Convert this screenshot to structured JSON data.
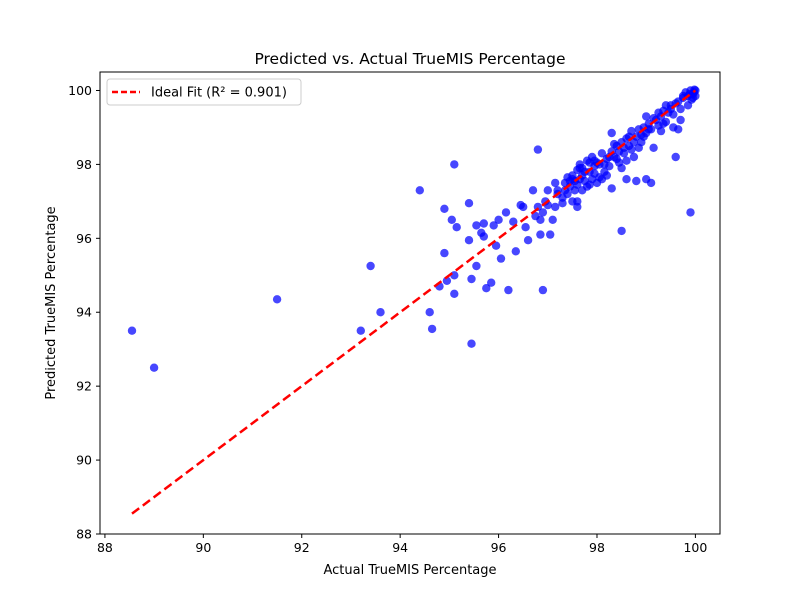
{
  "chart_data": {
    "type": "scatter",
    "title": "Predicted vs. Actual TrueMIS Percentage",
    "xlabel": "Actual TrueMIS Percentage",
    "ylabel": "Predicted TrueMIS Percentage",
    "xlim": [
      87.9,
      100.5
    ],
    "ylim": [
      88,
      100.5
    ],
    "xticks": [
      88,
      90,
      92,
      94,
      96,
      98,
      100
    ],
    "yticks": [
      88,
      90,
      92,
      94,
      96,
      98,
      100
    ],
    "xtick_labels": [
      "88",
      "90",
      "92",
      "94",
      "96",
      "98",
      "100"
    ],
    "ytick_labels": [
      "88",
      "90",
      "92",
      "94",
      "96",
      "98",
      "100"
    ],
    "grid": false,
    "legend_position": "top-left",
    "legend_label": "Ideal Fit (R² = 0.901)",
    "marker_color": "#0000ff",
    "line_color": "#ff0000",
    "ideal_line": {
      "x": [
        88.55,
        100.0
      ],
      "y": [
        88.55,
        100.0
      ]
    },
    "series": [
      {
        "points": [
          [
            88.55,
            93.5
          ],
          [
            89.0,
            92.5
          ],
          [
            91.5,
            94.35
          ],
          [
            93.2,
            93.5
          ],
          [
            93.4,
            95.25
          ],
          [
            93.6,
            94.0
          ],
          [
            94.4,
            97.3
          ],
          [
            94.6,
            94.0
          ],
          [
            94.65,
            93.55
          ],
          [
            94.8,
            94.7
          ],
          [
            94.95,
            94.85
          ],
          [
            94.9,
            96.8
          ],
          [
            94.9,
            95.6
          ],
          [
            95.05,
            96.5
          ],
          [
            95.1,
            94.5
          ],
          [
            95.1,
            95.0
          ],
          [
            95.1,
            98.0
          ],
          [
            95.15,
            96.3
          ],
          [
            95.4,
            95.95
          ],
          [
            95.4,
            96.95
          ],
          [
            95.45,
            93.15
          ],
          [
            95.45,
            94.9
          ],
          [
            95.55,
            96.35
          ],
          [
            95.55,
            95.25
          ],
          [
            95.65,
            96.15
          ],
          [
            95.7,
            96.4
          ],
          [
            95.7,
            96.05
          ],
          [
            95.75,
            94.65
          ],
          [
            95.85,
            94.8
          ],
          [
            95.9,
            96.35
          ],
          [
            95.95,
            95.8
          ],
          [
            96.0,
            96.5
          ],
          [
            96.05,
            95.45
          ],
          [
            96.15,
            96.7
          ],
          [
            96.2,
            94.6
          ],
          [
            96.3,
            96.45
          ],
          [
            96.35,
            95.65
          ],
          [
            96.45,
            96.9
          ],
          [
            96.55,
            96.3
          ],
          [
            96.6,
            95.95
          ],
          [
            96.7,
            97.3
          ],
          [
            96.8,
            96.85
          ],
          [
            96.85,
            96.5
          ],
          [
            96.85,
            96.1
          ],
          [
            96.9,
            94.6
          ],
          [
            96.9,
            96.7
          ],
          [
            96.95,
            97.0
          ],
          [
            97.0,
            96.9
          ],
          [
            97.05,
            96.1
          ],
          [
            97.1,
            96.5
          ],
          [
            97.15,
            97.5
          ],
          [
            96.8,
            98.4
          ],
          [
            97.2,
            97.2
          ],
          [
            97.3,
            97.1
          ],
          [
            97.35,
            97.5
          ],
          [
            97.4,
            97.65
          ],
          [
            97.45,
            97.4
          ],
          [
            97.5,
            97.7
          ],
          [
            97.55,
            97.3
          ],
          [
            97.6,
            97.85
          ],
          [
            97.65,
            98.0
          ],
          [
            97.65,
            97.9
          ],
          [
            97.6,
            96.85
          ],
          [
            97.6,
            97.0
          ],
          [
            97.7,
            97.7
          ],
          [
            97.75,
            97.55
          ],
          [
            97.8,
            98.1
          ],
          [
            97.85,
            97.45
          ],
          [
            97.85,
            97.8
          ],
          [
            97.9,
            98.2
          ],
          [
            97.95,
            97.95
          ],
          [
            97.95,
            97.75
          ],
          [
            98.0,
            98.05
          ],
          [
            98.05,
            98.0
          ],
          [
            98.05,
            97.65
          ],
          [
            98.1,
            98.3
          ],
          [
            98.15,
            97.8
          ],
          [
            98.2,
            98.15
          ],
          [
            98.25,
            97.95
          ],
          [
            98.3,
            98.35
          ],
          [
            98.3,
            98.85
          ],
          [
            98.3,
            97.35
          ],
          [
            98.35,
            98.2
          ],
          [
            98.4,
            98.5
          ],
          [
            98.45,
            98.05
          ],
          [
            98.5,
            98.6
          ],
          [
            98.5,
            97.9
          ],
          [
            98.55,
            98.3
          ],
          [
            98.6,
            98.7
          ],
          [
            98.6,
            97.6
          ],
          [
            98.5,
            96.2
          ],
          [
            98.65,
            98.5
          ],
          [
            98.7,
            98.9
          ],
          [
            98.75,
            98.2
          ],
          [
            98.8,
            98.75
          ],
          [
            98.8,
            97.55
          ],
          [
            98.85,
            98.95
          ],
          [
            98.9,
            98.6
          ],
          [
            98.95,
            99.0
          ],
          [
            99.0,
            97.6
          ],
          [
            99.0,
            98.85
          ],
          [
            99.05,
            99.1
          ],
          [
            99.1,
            97.5
          ],
          [
            99.1,
            98.95
          ],
          [
            99.15,
            98.45
          ],
          [
            99.2,
            99.2
          ],
          [
            99.25,
            99.05
          ],
          [
            99.3,
            99.3
          ],
          [
            99.35,
            99.1
          ],
          [
            99.4,
            99.6
          ],
          [
            99.45,
            99.4
          ],
          [
            99.5,
            99.5
          ],
          [
            99.55,
            99.35
          ],
          [
            99.6,
            99.65
          ],
          [
            99.6,
            98.2
          ],
          [
            99.65,
            98.95
          ],
          [
            99.65,
            99.7
          ],
          [
            99.7,
            99.5
          ],
          [
            99.75,
            99.8
          ],
          [
            99.8,
            99.95
          ],
          [
            99.85,
            99.85
          ],
          [
            99.9,
            100.0
          ],
          [
            99.9,
            96.7
          ],
          [
            99.95,
            99.9
          ],
          [
            100.0,
            100.0
          ],
          [
            99.97,
            99.95
          ],
          [
            99.92,
            99.75
          ],
          [
            99.98,
            100.02
          ],
          [
            100.0,
            99.85
          ],
          [
            99.88,
            99.9
          ],
          [
            99.7,
            99.2
          ],
          [
            99.55,
            99.0
          ],
          [
            99.4,
            99.15
          ],
          [
            99.3,
            98.9
          ],
          [
            99.0,
            99.3
          ],
          [
            98.9,
            98.8
          ],
          [
            98.7,
            98.4
          ],
          [
            98.6,
            98.1
          ],
          [
            98.4,
            98.15
          ],
          [
            98.2,
            97.7
          ],
          [
            98.0,
            97.5
          ],
          [
            97.8,
            97.4
          ],
          [
            97.7,
            97.3
          ],
          [
            97.5,
            97.0
          ],
          [
            97.4,
            97.2
          ],
          [
            97.3,
            96.95
          ],
          [
            97.2,
            97.3
          ],
          [
            97.0,
            97.3
          ],
          [
            96.75,
            96.6
          ],
          [
            96.5,
            96.85
          ],
          [
            97.5,
            97.6
          ],
          [
            97.65,
            97.6
          ],
          [
            97.75,
            97.8
          ],
          [
            97.95,
            98.1
          ],
          [
            98.15,
            98.0
          ],
          [
            98.35,
            98.55
          ],
          [
            98.55,
            98.45
          ],
          [
            98.75,
            98.6
          ],
          [
            98.95,
            98.75
          ],
          [
            99.15,
            99.25
          ],
          [
            99.35,
            99.45
          ],
          [
            99.5,
            99.6
          ],
          [
            99.75,
            99.85
          ],
          [
            99.95,
            99.8
          ],
          [
            99.85,
            99.6
          ],
          [
            97.45,
            97.55
          ],
          [
            97.55,
            97.55
          ],
          [
            97.85,
            98.05
          ],
          [
            98.1,
            97.6
          ],
          [
            98.25,
            98.2
          ],
          [
            98.45,
            98.35
          ],
          [
            98.65,
            98.75
          ],
          [
            98.85,
            98.45
          ],
          [
            99.05,
            98.95
          ],
          [
            99.25,
            99.4
          ],
          [
            97.9,
            97.6
          ],
          [
            97.7,
            97.9
          ],
          [
            97.6,
            97.45
          ],
          [
            97.35,
            97.3
          ],
          [
            97.15,
            96.85
          ]
        ]
      }
    ]
  }
}
